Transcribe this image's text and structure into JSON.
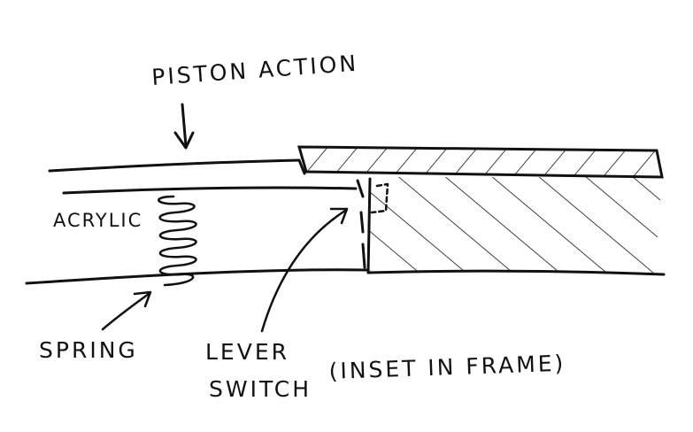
{
  "labels": {
    "piston_action": "PISTON ACTION",
    "acrylic": "ACRYLIC",
    "spring": "SPRING",
    "lever": "LEVER",
    "switch": "SWITCH",
    "inset_note": "(INSET IN FRAME)"
  }
}
